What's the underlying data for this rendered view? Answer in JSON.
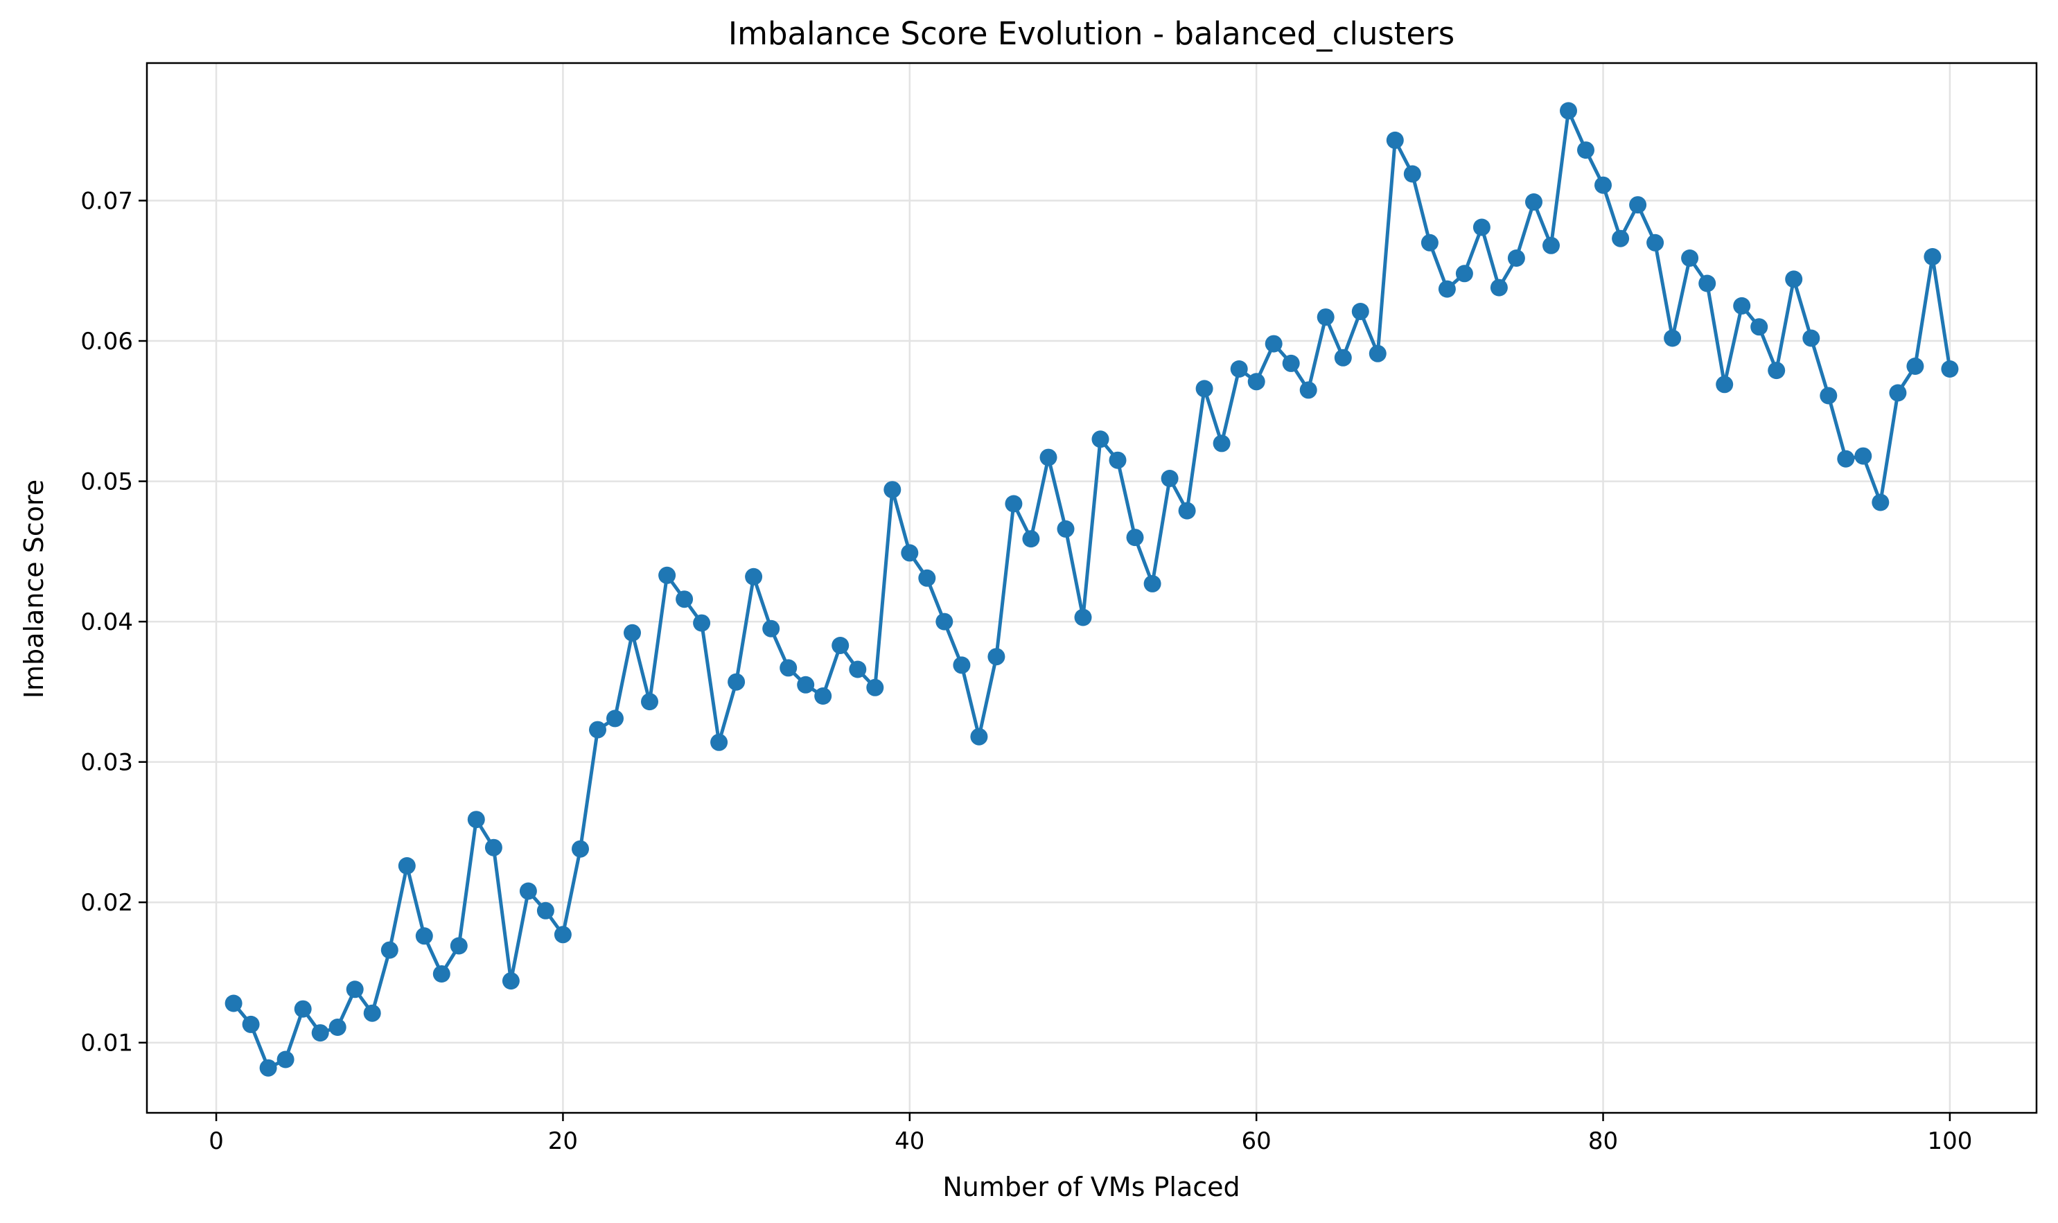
{
  "chart_data": {
    "type": "line",
    "title": "Imbalance Score Evolution - balanced_clusters",
    "xlabel": "Number of VMs Placed",
    "ylabel": "Imbalance Score",
    "xlim": [
      -4,
      105
    ],
    "ylim": [
      0.005,
      0.0798
    ],
    "x_ticks": [
      0,
      20,
      40,
      60,
      80,
      100
    ],
    "x_tick_labels": [
      "0",
      "20",
      "40",
      "60",
      "80",
      "100"
    ],
    "y_ticks": [
      0.01,
      0.02,
      0.03,
      0.04,
      0.05,
      0.06,
      0.07
    ],
    "y_tick_labels": [
      "0.01",
      "0.02",
      "0.03",
      "0.04",
      "0.05",
      "0.06",
      "0.07"
    ],
    "grid": true,
    "marker": "circle",
    "color": "#1f77b4",
    "series": [
      {
        "x": [
          1,
          2,
          3,
          4,
          5,
          6,
          7,
          8,
          9,
          10,
          11,
          12,
          13,
          14,
          15,
          16,
          17,
          18,
          19,
          20,
          21,
          22,
          23,
          24,
          25,
          26,
          27,
          28,
          29,
          30,
          31,
          32,
          33,
          34,
          35,
          36,
          37,
          38,
          39,
          40,
          41,
          42,
          43,
          44,
          45,
          46,
          47,
          48,
          49,
          50,
          51,
          52,
          53,
          54,
          55,
          56,
          57,
          58,
          59,
          60,
          61,
          62,
          63,
          64,
          65,
          66,
          67,
          68,
          69,
          70,
          71,
          72,
          73,
          74,
          75,
          76,
          77,
          78,
          79,
          80,
          81,
          82,
          83,
          84,
          85,
          86,
          87,
          88,
          89,
          90,
          91,
          92,
          93,
          94,
          95,
          96,
          97,
          98,
          99,
          100
        ],
        "values": [
          0.0128,
          0.0113,
          0.0082,
          0.0088,
          0.0124,
          0.0107,
          0.0111,
          0.0138,
          0.0121,
          0.0166,
          0.0226,
          0.0176,
          0.0149,
          0.0169,
          0.0259,
          0.0239,
          0.0144,
          0.0208,
          0.0194,
          0.0177,
          0.0238,
          0.0323,
          0.0331,
          0.0392,
          0.0343,
          0.0433,
          0.0416,
          0.0399,
          0.0314,
          0.0357,
          0.0432,
          0.0395,
          0.0367,
          0.0355,
          0.0347,
          0.0383,
          0.0366,
          0.0353,
          0.0494,
          0.0449,
          0.0431,
          0.04,
          0.0369,
          0.0318,
          0.0375,
          0.0484,
          0.0459,
          0.0517,
          0.0466,
          0.0403,
          0.053,
          0.0515,
          0.046,
          0.0427,
          0.0502,
          0.0479,
          0.0566,
          0.0527,
          0.058,
          0.0571,
          0.0598,
          0.0584,
          0.0565,
          0.0617,
          0.0588,
          0.0621,
          0.0591,
          0.0743,
          0.0719,
          0.067,
          0.0637,
          0.0648,
          0.0681,
          0.0638,
          0.0659,
          0.0699,
          0.0668,
          0.0764,
          0.0736,
          0.0711,
          0.0673,
          0.0697,
          0.067,
          0.0602,
          0.0659,
          0.0641,
          0.0569,
          0.0625,
          0.061,
          0.0579,
          0.0644,
          0.0602,
          0.0561,
          0.0516,
          0.0518,
          0.0485,
          0.0563,
          0.0582,
          0.066,
          0.058
        ]
      }
    ]
  }
}
